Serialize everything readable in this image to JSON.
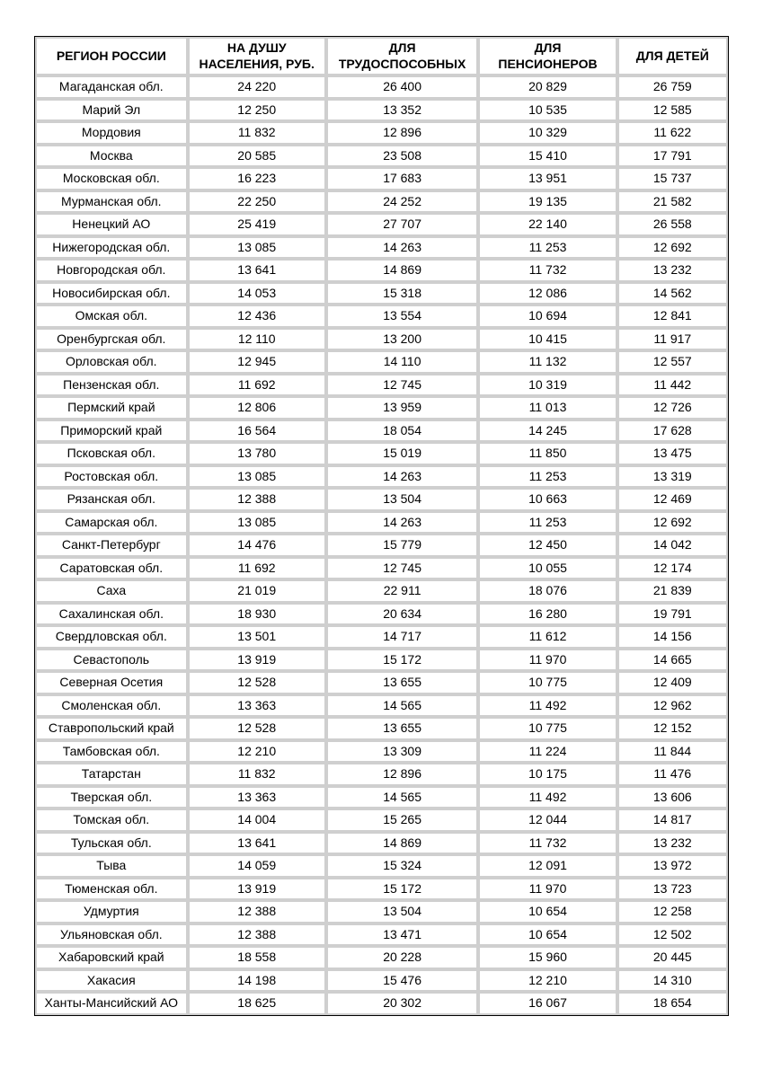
{
  "table": {
    "columns": [
      "РЕГИОН РОССИИ",
      "НА ДУШУ НАСЕЛЕНИЯ, РУБ.",
      "ДЛЯ ТРУДОСПОСОБНЫХ",
      "ДЛЯ ПЕНСИОНЕРОВ",
      "ДЛЯ ДЕТЕЙ"
    ],
    "column_widths_pct": [
      22,
      20,
      22,
      20,
      16
    ],
    "header_fontsize_pt": 11,
    "cell_fontsize_pt": 11,
    "border_color": "#000000",
    "gap_color": "#cfcfcf",
    "background_color": "#ffffff",
    "text_color": "#000000",
    "rows": [
      [
        "Магаданская обл.",
        "24 220",
        "26 400",
        "20 829",
        "26 759"
      ],
      [
        "Марий Эл",
        "12 250",
        "13 352",
        "10 535",
        "12 585"
      ],
      [
        "Мордовия",
        "11 832",
        "12 896",
        "10 329",
        "11 622"
      ],
      [
        "Москва",
        "20 585",
        "23 508",
        "15 410",
        "17 791"
      ],
      [
        "Московская обл.",
        "16 223",
        "17 683",
        "13 951",
        "15 737"
      ],
      [
        "Мурманская обл.",
        "22 250",
        "24 252",
        "19 135",
        "21 582"
      ],
      [
        "Ненецкий АО",
        "25 419",
        "27 707",
        "22 140",
        "26 558"
      ],
      [
        "Нижегородская обл.",
        "13 085",
        "14 263",
        "11 253",
        "12 692"
      ],
      [
        "Новгородская обл.",
        "13 641",
        "14 869",
        "11 732",
        "13 232"
      ],
      [
        "Новосибирская обл.",
        "14 053",
        "15 318",
        "12 086",
        "14 562"
      ],
      [
        "Омская обл.",
        "12 436",
        "13 554",
        "10 694",
        "12 841"
      ],
      [
        "Оренбургская обл.",
        "12 110",
        "13 200",
        "10 415",
        "11 917"
      ],
      [
        "Орловская обл.",
        "12 945",
        "14 110",
        "11 132",
        "12 557"
      ],
      [
        "Пензенская обл.",
        "11 692",
        "12 745",
        "10 319",
        "11 442"
      ],
      [
        "Пермский край",
        "12 806",
        "13 959",
        "11 013",
        "12 726"
      ],
      [
        "Приморский край",
        "16 564",
        "18 054",
        "14 245",
        "17 628"
      ],
      [
        "Псковская обл.",
        "13 780",
        "15 019",
        "11 850",
        "13 475"
      ],
      [
        "Ростовская обл.",
        "13 085",
        "14 263",
        "11 253",
        "13 319"
      ],
      [
        "Рязанская обл.",
        "12 388",
        "13 504",
        "10 663",
        "12 469"
      ],
      [
        "Самарская обл.",
        "13 085",
        "14 263",
        "11 253",
        "12 692"
      ],
      [
        "Санкт-Петербург",
        "14 476",
        "15 779",
        "12 450",
        "14 042"
      ],
      [
        "Саратовская обл.",
        "11 692",
        "12 745",
        "10 055",
        "12 174"
      ],
      [
        "Саха",
        "21 019",
        "22 911",
        "18 076",
        "21 839"
      ],
      [
        "Сахалинская обл.",
        "18 930",
        "20 634",
        "16 280",
        "19 791"
      ],
      [
        "Свердловская обл.",
        "13 501",
        "14 717",
        "11 612",
        "14 156"
      ],
      [
        "Севастополь",
        "13 919",
        "15 172",
        "11 970",
        "14 665"
      ],
      [
        "Северная Осетия",
        "12 528",
        "13 655",
        "10 775",
        "12 409"
      ],
      [
        "Смоленская обл.",
        "13 363",
        "14 565",
        "11 492",
        "12 962"
      ],
      [
        "Ставропольский край",
        "12 528",
        "13 655",
        "10 775",
        "12 152"
      ],
      [
        "Тамбовская обл.",
        "12 210",
        "13 309",
        "11 224",
        "11 844"
      ],
      [
        "Татарстан",
        "11 832",
        "12 896",
        "10 175",
        "11 476"
      ],
      [
        "Тверская обл.",
        "13 363",
        "14 565",
        "11 492",
        "13 606"
      ],
      [
        "Томская обл.",
        "14 004",
        "15 265",
        "12 044",
        "14 817"
      ],
      [
        "Тульская обл.",
        "13 641",
        "14 869",
        "11 732",
        "13 232"
      ],
      [
        "Тыва",
        "14 059",
        "15 324",
        "12 091",
        "13 972"
      ],
      [
        "Тюменская обл.",
        "13 919",
        "15 172",
        "11 970",
        "13 723"
      ],
      [
        "Удмуртия",
        "12 388",
        "13 504",
        "10 654",
        "12 258"
      ],
      [
        "Ульяновская обл.",
        "12 388",
        "13 471",
        "10 654",
        "12 502"
      ],
      [
        "Хабаровский край",
        "18 558",
        "20 228",
        "15 960",
        "20 445"
      ],
      [
        "Хакасия",
        "14 198",
        "15 476",
        "12 210",
        "14 310"
      ],
      [
        "Ханты-Мансийский АО",
        "18 625",
        "20 302",
        "16 067",
        "18 654"
      ]
    ]
  }
}
